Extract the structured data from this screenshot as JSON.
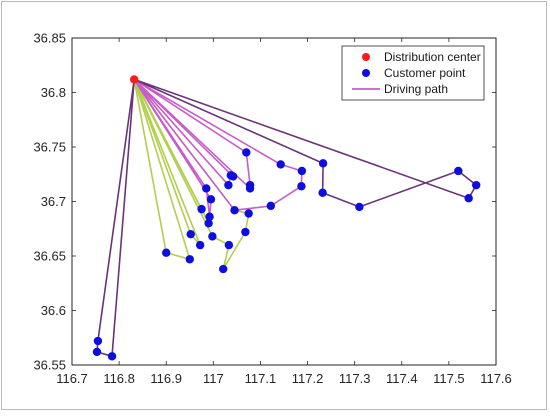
{
  "colors": {
    "depot": "#ff1a1a",
    "customer": "#0d0de0",
    "short_route": "#b2cf4e",
    "mid_route": "#c85cc8",
    "long_route": "#6a3578",
    "legend_path": "#c85cc8",
    "axis": "#262626"
  },
  "chart_data": {
    "type": "scatter",
    "title": "",
    "xlabel": "",
    "ylabel": "",
    "xlim": [
      116.7,
      117.6
    ],
    "ylim": [
      36.55,
      36.85
    ],
    "xticks": [
      "116.7",
      "116.8",
      "116.9",
      "117",
      "117.1",
      "117.2",
      "117.3",
      "117.4",
      "117.5",
      "117.6"
    ],
    "yticks": [
      "36.55",
      "36.6",
      "36.65",
      "36.7",
      "36.75",
      "36.8",
      "36.85"
    ],
    "grid": false,
    "legend_placement": "top-right",
    "legend": [
      {
        "label": "Distribution center",
        "marker": "dot",
        "color_key": "depot"
      },
      {
        "label": "Customer point",
        "marker": "dot",
        "color_key": "customer"
      },
      {
        "label": "Driving path",
        "marker": "line",
        "color_key": "legend_path"
      }
    ],
    "depot": {
      "x": 116.832,
      "y": 36.812
    },
    "customers": [
      {
        "x": 116.755,
        "y": 36.572
      },
      {
        "x": 116.753,
        "y": 36.562
      },
      {
        "x": 116.785,
        "y": 36.558
      },
      {
        "x": 116.9,
        "y": 36.653
      },
      {
        "x": 116.95,
        "y": 36.647
      },
      {
        "x": 116.952,
        "y": 36.67
      },
      {
        "x": 116.972,
        "y": 36.66
      },
      {
        "x": 116.975,
        "y": 36.693
      },
      {
        "x": 116.985,
        "y": 36.712
      },
      {
        "x": 116.99,
        "y": 36.68
      },
      {
        "x": 116.992,
        "y": 36.686
      },
      {
        "x": 116.995,
        "y": 36.702
      },
      {
        "x": 116.998,
        "y": 36.668
      },
      {
        "x": 117.021,
        "y": 36.638
      },
      {
        "x": 117.033,
        "y": 36.66
      },
      {
        "x": 117.032,
        "y": 36.715
      },
      {
        "x": 117.037,
        "y": 36.724
      },
      {
        "x": 117.042,
        "y": 36.723
      },
      {
        "x": 117.045,
        "y": 36.692
      },
      {
        "x": 117.068,
        "y": 36.672
      },
      {
        "x": 117.07,
        "y": 36.745
      },
      {
        "x": 117.075,
        "y": 36.689
      },
      {
        "x": 117.078,
        "y": 36.712
      },
      {
        "x": 117.078,
        "y": 36.715
      },
      {
        "x": 117.122,
        "y": 36.696
      },
      {
        "x": 117.143,
        "y": 36.734
      },
      {
        "x": 117.187,
        "y": 36.714
      },
      {
        "x": 117.188,
        "y": 36.728
      },
      {
        "x": 117.232,
        "y": 36.708
      },
      {
        "x": 117.233,
        "y": 36.735
      },
      {
        "x": 117.31,
        "y": 36.695
      },
      {
        "x": 117.52,
        "y": 36.728
      },
      {
        "x": 117.542,
        "y": 36.703
      },
      {
        "x": 117.558,
        "y": 36.715
      }
    ],
    "routes": [
      {
        "style": "short_route",
        "points": [
          [
            116.832,
            36.812
          ],
          [
            116.9,
            36.653
          ],
          [
            116.95,
            36.647
          ],
          [
            116.832,
            36.812
          ]
        ]
      },
      {
        "style": "short_route",
        "points": [
          [
            116.832,
            36.812
          ],
          [
            116.952,
            36.67
          ],
          [
            116.972,
            36.66
          ],
          [
            116.832,
            36.812
          ]
        ]
      },
      {
        "style": "short_route",
        "points": [
          [
            116.832,
            36.812
          ],
          [
            116.975,
            36.693
          ],
          [
            116.99,
            36.68
          ],
          [
            116.832,
            36.812
          ]
        ]
      },
      {
        "style": "short_route",
        "points": [
          [
            116.832,
            36.812
          ],
          [
            116.998,
            36.668
          ],
          [
            117.033,
            36.66
          ],
          [
            117.021,
            36.638
          ],
          [
            117.068,
            36.672
          ],
          [
            117.075,
            36.689
          ],
          [
            117.045,
            36.692
          ],
          [
            116.832,
            36.812
          ]
        ]
      },
      {
        "style": "mid_route",
        "points": [
          [
            116.832,
            36.812
          ],
          [
            116.985,
            36.712
          ],
          [
            116.992,
            36.686
          ],
          [
            116.995,
            36.702
          ],
          [
            116.832,
            36.812
          ]
        ]
      },
      {
        "style": "mid_route",
        "points": [
          [
            116.832,
            36.812
          ],
          [
            117.032,
            36.715
          ],
          [
            117.037,
            36.724
          ],
          [
            117.042,
            36.723
          ],
          [
            116.832,
            36.812
          ]
        ]
      },
      {
        "style": "mid_route",
        "points": [
          [
            116.832,
            36.812
          ],
          [
            117.07,
            36.745
          ],
          [
            117.078,
            36.715
          ],
          [
            117.078,
            36.712
          ],
          [
            116.832,
            36.812
          ]
        ]
      },
      {
        "style": "mid_route",
        "points": [
          [
            116.832,
            36.812
          ],
          [
            117.143,
            36.734
          ],
          [
            117.188,
            36.728
          ],
          [
            117.187,
            36.714
          ],
          [
            117.122,
            36.696
          ],
          [
            117.045,
            36.692
          ],
          [
            116.832,
            36.812
          ]
        ]
      },
      {
        "style": "long_route",
        "points": [
          [
            116.832,
            36.812
          ],
          [
            117.233,
            36.735
          ],
          [
            117.232,
            36.708
          ],
          [
            117.31,
            36.695
          ],
          [
            117.52,
            36.728
          ],
          [
            117.558,
            36.715
          ],
          [
            117.542,
            36.703
          ],
          [
            116.832,
            36.812
          ]
        ]
      },
      {
        "style": "long_route",
        "points": [
          [
            116.832,
            36.812
          ],
          [
            116.755,
            36.572
          ],
          [
            116.753,
            36.562
          ],
          [
            116.785,
            36.558
          ],
          [
            116.832,
            36.812
          ]
        ]
      }
    ]
  }
}
